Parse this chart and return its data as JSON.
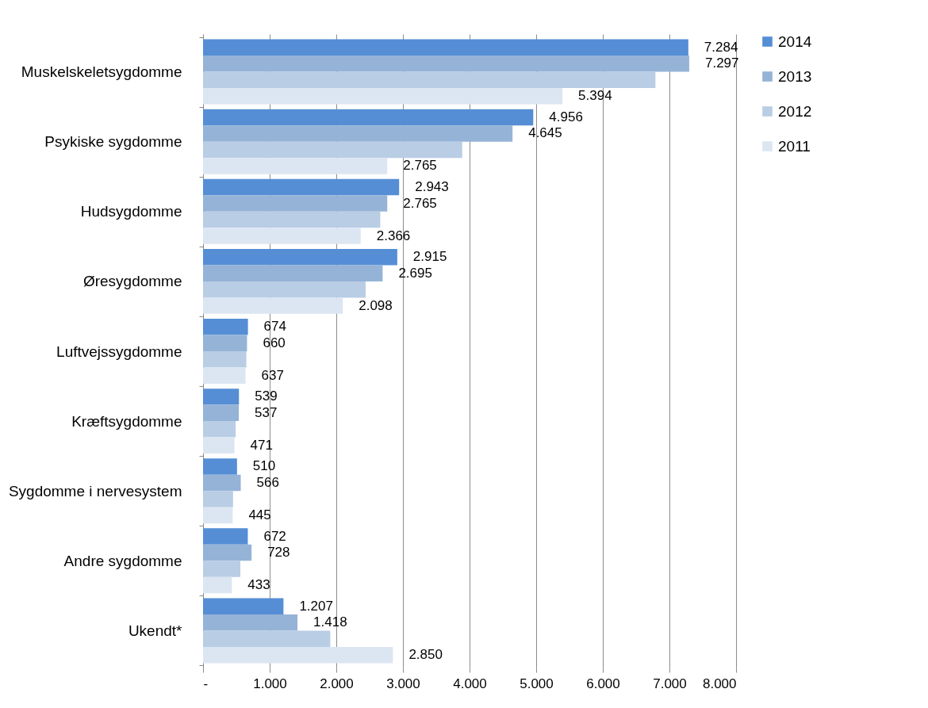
{
  "chart_data": {
    "type": "bar",
    "orientation": "horizontal",
    "categories": [
      "Muskelskeletsygdomme",
      "Psykiske sygdomme",
      "Hudsygdomme",
      "Øresygdomme",
      "Luftvejssygdomme",
      "Kræftsygdomme",
      "Sygdomme i nervesystem",
      "Andre sygdomme",
      "Ukendt*"
    ],
    "series": [
      {
        "name": "2014",
        "color": "#558ed5",
        "values": [
          7284,
          4956,
          2943,
          2915,
          674,
          539,
          510,
          672,
          1207
        ],
        "value_labels": [
          "7.284",
          "4.956",
          "2.943",
          "2.915",
          "674",
          "539",
          "510",
          "672",
          "1.207"
        ]
      },
      {
        "name": "2013",
        "color": "#95b3d7",
        "values": [
          7297,
          4645,
          2765,
          2695,
          660,
          537,
          566,
          728,
          1418
        ],
        "value_labels": [
          "7.297",
          "4.645",
          "2.765",
          "2.695",
          "660",
          "537",
          "566",
          "728",
          "1.418"
        ]
      },
      {
        "name": "2012",
        "color": "#b9cde5",
        "values": [
          6790,
          3890,
          2660,
          2440,
          650,
          490,
          450,
          560,
          1910
        ]
      },
      {
        "name": "2011",
        "color": "#dce6f2",
        "values": [
          5394,
          2765,
          2366,
          2098,
          637,
          471,
          445,
          433,
          2850
        ],
        "value_labels": [
          "5.394",
          "2.765",
          "2.366",
          "2.098",
          "637",
          "471",
          "445",
          "433",
          "2.850"
        ]
      }
    ],
    "xlim": [
      0,
      8000
    ],
    "xticks": [
      {
        "value": 0,
        "label": "-"
      },
      {
        "value": 1000,
        "label": "1.000"
      },
      {
        "value": 2000,
        "label": "2.000"
      },
      {
        "value": 3000,
        "label": "3.000"
      },
      {
        "value": 4000,
        "label": "4.000"
      },
      {
        "value": 5000,
        "label": "5.000"
      },
      {
        "value": 6000,
        "label": "6.000"
      },
      {
        "value": 7000,
        "label": "7.000"
      },
      {
        "value": 8000,
        "label": "8.000"
      }
    ],
    "grid": "x",
    "legend": "right"
  }
}
